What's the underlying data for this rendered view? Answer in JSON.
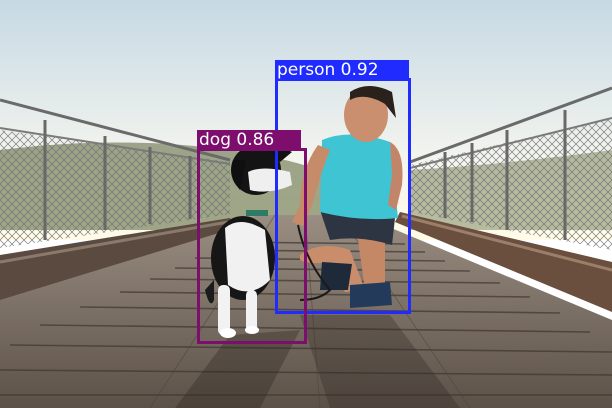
{
  "detections": [
    {
      "class": "person",
      "confidence": "0.92",
      "label": "person 0.92",
      "color": "#1f2bff"
    },
    {
      "class": "dog",
      "confidence": "0.86",
      "label": "dog 0.86",
      "color": "#7d0e6d"
    }
  ],
  "scene": {
    "sky_top": "#d9e6ee",
    "sky_bottom": "#f7f5ee",
    "deck": "#7b6e63",
    "rail": "#5e5c5a",
    "shirt": "#44c6d6",
    "shorts": "#2e3442"
  }
}
